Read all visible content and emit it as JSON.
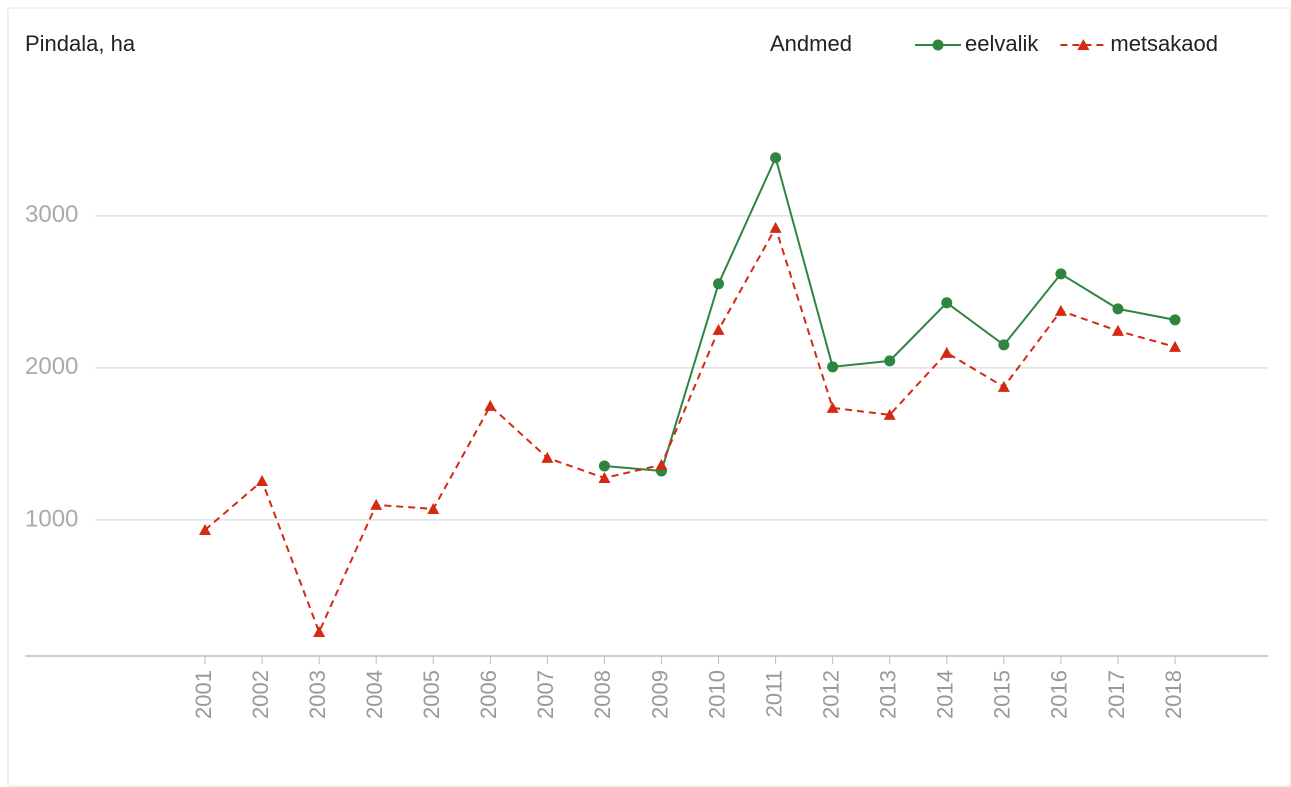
{
  "chart_data": {
    "type": "line",
    "y_label": "Pindala, ha",
    "legend_title": "Andmed",
    "categories": [
      "2001",
      "2002",
      "2003",
      "2004",
      "2005",
      "2006",
      "2007",
      "2008",
      "2009",
      "2010",
      "2011",
      "2012",
      "2013",
      "2014",
      "2015",
      "2016",
      "2017",
      "2018"
    ],
    "series": [
      {
        "name": "eelvalik",
        "color": "#2e8540",
        "marker": "circle",
        "dash": "solid",
        "values": [
          null,
          null,
          null,
          null,
          null,
          null,
          null,
          1355,
          1322,
          2553,
          3382,
          2007,
          2046,
          2428,
          2151,
          2618,
          2388,
          2316
        ]
      },
      {
        "name": "metsakaod",
        "color": "#d42a12",
        "marker": "triangle",
        "dash": "dashed",
        "values": [
          934,
          1256,
          263,
          1099,
          1072,
          1750,
          1408,
          1276,
          1362,
          2250,
          2921,
          1737,
          1691,
          2099,
          1875,
          2375,
          2243,
          2138
        ]
      }
    ],
    "ylim": [
      105,
      3900
    ],
    "yticks": [
      1000,
      2000,
      3000
    ],
    "grid": true,
    "legend_position": "top-right"
  }
}
